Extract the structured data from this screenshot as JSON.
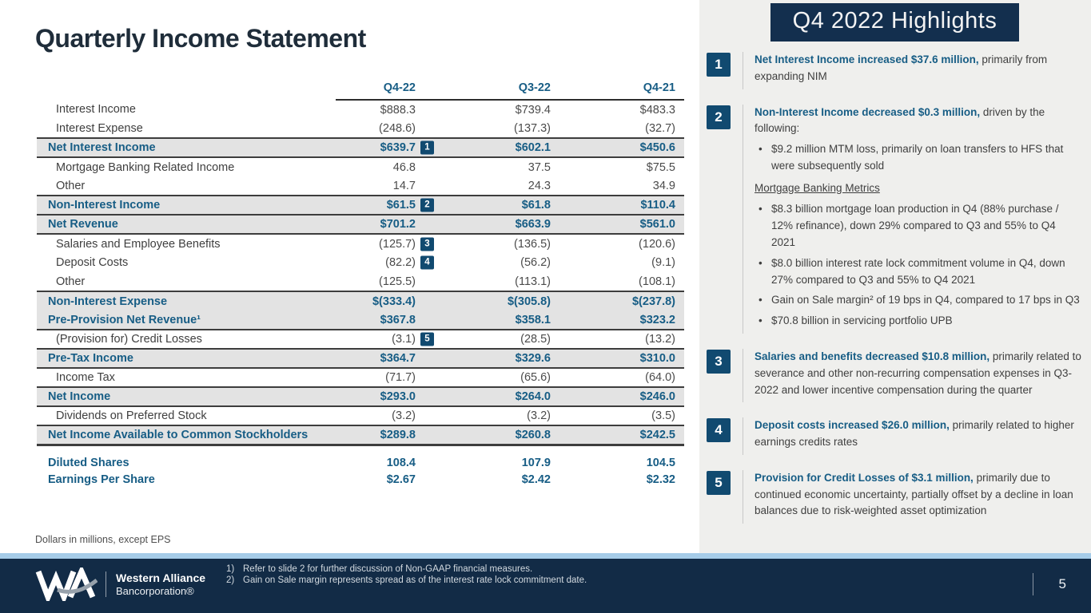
{
  "slide": {
    "title": "Quarterly Income Statement",
    "note": "Dollars in millions, except EPS",
    "page_number": "5"
  },
  "colors": {
    "accent_navy": "#175d85",
    "header_box_navy": "#132f4e",
    "footer_navy": "#122b46",
    "badge_navy": "#114a70",
    "stripe_blue": "#a6cce8",
    "panel_bg": "#efefed",
    "row_highlight": "#e3e3e3"
  },
  "table": {
    "columns": [
      "Q4-22",
      "Q3-22",
      "Q4-21"
    ],
    "rows": [
      {
        "label": "Interest Income",
        "kind": "item",
        "values": [
          "$888.3",
          "$739.4",
          "$483.3"
        ]
      },
      {
        "label": "Interest Expense",
        "kind": "item",
        "values": [
          "(248.6)",
          "(137.3)",
          "(32.7)"
        ]
      },
      {
        "label": "Net Interest Income",
        "kind": "total",
        "badge": "1",
        "values": [
          "$639.7",
          "$602.1",
          "$450.6"
        ]
      },
      {
        "label": "Mortgage Banking Related Income",
        "kind": "item",
        "values": [
          "46.8",
          "37.5",
          "$75.5"
        ]
      },
      {
        "label": "Other",
        "kind": "item",
        "values": [
          "14.7",
          "24.3",
          "34.9"
        ]
      },
      {
        "label": "Non-Interest Income",
        "kind": "total",
        "badge": "2",
        "values": [
          "$61.5",
          "$61.8",
          "$110.4"
        ]
      },
      {
        "label": "Net Revenue",
        "kind": "total",
        "values": [
          "$701.2",
          "$663.9",
          "$561.0"
        ]
      },
      {
        "label": "Salaries and Employee Benefits",
        "kind": "item",
        "badge": "3",
        "values": [
          "(125.7)",
          "(136.5)",
          "(120.6)"
        ]
      },
      {
        "label": "Deposit Costs",
        "kind": "item",
        "badge": "4",
        "values": [
          "(82.2)",
          "(56.2)",
          "(9.1)"
        ]
      },
      {
        "label": "Other",
        "kind": "item",
        "values": [
          "(125.5)",
          "(113.1)",
          "(108.1)"
        ]
      },
      {
        "label": "Non-Interest Expense",
        "kind": "total",
        "group": "start",
        "values": [
          "$(333.4)",
          "$(305.8)",
          "$(237.8)"
        ]
      },
      {
        "label": "Pre-Provision Net Revenue¹",
        "kind": "total",
        "group": "end",
        "values": [
          "$367.8",
          "$358.1",
          "$323.2"
        ]
      },
      {
        "label": "(Provision for) Credit Losses",
        "kind": "item",
        "badge": "5",
        "values": [
          "(3.1)",
          "(28.5)",
          "(13.2)"
        ]
      },
      {
        "label": "Pre-Tax Income",
        "kind": "total",
        "values": [
          "$364.7",
          "$329.6",
          "$310.0"
        ]
      },
      {
        "label": "Income Tax",
        "kind": "item",
        "values": [
          "(71.7)",
          "(65.6)",
          "(64.0)"
        ]
      },
      {
        "label": "Net Income",
        "kind": "total",
        "values": [
          "$293.0",
          "$264.0",
          "$246.0"
        ]
      },
      {
        "label": "Dividends on Preferred Stock",
        "kind": "item",
        "values": [
          "(3.2)",
          "(3.2)",
          "(3.5)"
        ]
      },
      {
        "label": "Net Income Available to Common Stockholders",
        "kind": "total",
        "last": true,
        "values": [
          "$289.8",
          "$260.8",
          "$242.5"
        ]
      },
      {
        "label": "Diluted Shares",
        "kind": "metric",
        "values": [
          "108.4",
          "107.9",
          "104.5"
        ]
      },
      {
        "label": "Earnings Per Share",
        "kind": "metric",
        "values": [
          "$2.67",
          "$2.42",
          "$2.32"
        ]
      }
    ]
  },
  "highlights": {
    "header": "Q4 2022 Highlights",
    "bullet_char": "•",
    "items": [
      {
        "num": "1",
        "lead": "Net Interest Income increased $37.6 million,",
        "rest": " primarily from expanding NIM"
      },
      {
        "num": "2",
        "lead": "Non-Interest Income decreased $0.3 million,",
        "rest": " driven by the following:",
        "bullets": [
          "$9.2 million MTM loss, primarily on loan transfers to HFS that were subsequently sold"
        ],
        "subheading": "Mortgage Banking Metrics",
        "bullets2": [
          "$8.3 billion mortgage loan production in Q4 (88% purchase / 12% refinance), down 29% compared to Q3 and 55% to Q4 2021",
          "$8.0 billion interest rate lock commitment volume in Q4, down 27% compared to Q3 and 55% to Q4 2021",
          "Gain on Sale margin² of 19 bps in Q4, compared to 17 bps in Q3",
          "$70.8 billion in servicing portfolio UPB"
        ]
      },
      {
        "num": "3",
        "lead": "Salaries and benefits decreased $10.8 million,",
        "rest": " primarily related to severance and other non-recurring compensation expenses in Q3-2022 and lower incentive compensation during the quarter"
      },
      {
        "num": "4",
        "lead": "Deposit costs increased $26.0 million,",
        "rest": " primarily related to higher earnings credits rates"
      },
      {
        "num": "5",
        "lead": "Provision for Credit Losses of $3.1 million,",
        "rest": " primarily due to continued economic uncertainty, partially offset by a decline in loan balances due to risk-weighted asset optimization"
      }
    ]
  },
  "footer": {
    "brand_line1": "Western Alliance",
    "brand_line2": "Bancorporation®",
    "footnotes": [
      {
        "num": "1)",
        "text": "Refer to slide 2 for further discussion of Non-GAAP financial measures."
      },
      {
        "num": "2)",
        "text": "Gain on Sale margin represents spread as of the interest rate lock commitment date."
      }
    ]
  }
}
